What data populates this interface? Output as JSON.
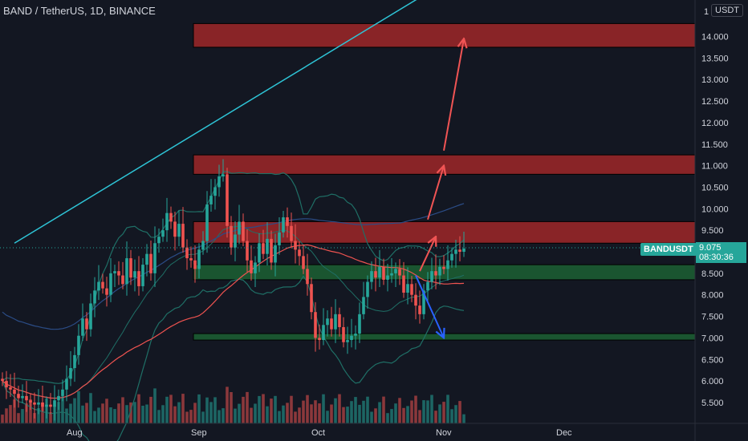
{
  "header": {
    "title": "BAND / TetherUS, 1D, BINANCE",
    "currency": "USDT",
    "partial_tick": "1"
  },
  "price_tag": {
    "symbol": "BANDUSDT",
    "price": "9.075",
    "countdown": "08:30:36"
  },
  "colors": {
    "background": "#131722",
    "up": "#26a69a",
    "down": "#ef5350",
    "trendline": "#2ec4d6",
    "resistance_zone": "#b22a2a",
    "support_zone": "#1e6b35",
    "projection_up": "#f05454",
    "projection_down": "#2962ff",
    "bollinger": "#1f6f66",
    "ma_red": "#ef5350",
    "ma_blue": "#2b4c86"
  },
  "chart_data": {
    "type": "candlestick",
    "symbol": "BAND / TetherUS",
    "interval": "1D",
    "exchange": "BINANCE",
    "y_axis": {
      "ticks": [
        "14.000",
        "13.500",
        "13.000",
        "12.500",
        "12.000",
        "11.500",
        "11.000",
        "10.500",
        "10.000",
        "9.500",
        "9.000",
        "8.500",
        "8.000",
        "7.500",
        "7.000",
        "6.500",
        "6.000",
        "5.500"
      ],
      "range": [
        5.0,
        15.0
      ]
    },
    "x_axis": {
      "ticks": [
        "Aug",
        "Sep",
        "Oct",
        "Nov",
        "Dec"
      ],
      "ticks_day": [
        0,
        31,
        61,
        92,
        122
      ]
    },
    "last_price": 9.075,
    "close_series": [
      6.0,
      5.85,
      5.8,
      5.7,
      5.6,
      5.65,
      5.55,
      5.5,
      5.45,
      5.5,
      5.4,
      5.45,
      5.4,
      5.55,
      5.65,
      5.8,
      6.05,
      6.3,
      6.6,
      7.05,
      7.45,
      7.2,
      7.8,
      8.1,
      8.3,
      8.15,
      8.0,
      8.5,
      8.55,
      8.45,
      8.25,
      8.85,
      8.4,
      8.55,
      8.2,
      8.7,
      8.95,
      8.5,
      9.2,
      9.35,
      9.5,
      9.9,
      9.7,
      9.35,
      9.65,
      9.1,
      8.85,
      8.8,
      8.6,
      9.05,
      9.25,
      10.1,
      10.3,
      10.5,
      10.75,
      10.8,
      9.6,
      9.1,
      9.4,
      9.7,
      9.25,
      8.8,
      8.5,
      8.75,
      9.2,
      8.95,
      9.3,
      8.75,
      9.15,
      9.45,
      9.8,
      9.6,
      9.25,
      9.05,
      8.9,
      8.6,
      8.25,
      7.6,
      7.0,
      6.95,
      7.3,
      7.45,
      7.2,
      7.55,
      7.25,
      6.9,
      6.95,
      7.05,
      7.1,
      7.55,
      7.95,
      8.3,
      8.55,
      8.4,
      8.65,
      8.35,
      8.45,
      8.5,
      8.6,
      8.45,
      8.05,
      8.25,
      8.0,
      7.75,
      7.55,
      8.1,
      8.3,
      8.55,
      8.45,
      8.65,
      8.6,
      8.8,
      8.95,
      9.05,
      9.0,
      9.075
    ],
    "zones": [
      {
        "type": "resistance",
        "from_day": 31,
        "low": 13.75,
        "high": 14.3
      },
      {
        "type": "resistance",
        "from_day": 31,
        "low": 10.8,
        "high": 11.25
      },
      {
        "type": "resistance",
        "from_day": 31,
        "low": 9.2,
        "high": 9.7
      },
      {
        "type": "support",
        "from_day": 31,
        "low": 8.35,
        "high": 8.7
      },
      {
        "type": "support",
        "from_day": 31,
        "low": 6.95,
        "high": 7.1
      }
    ],
    "trendline": [
      {
        "day": -15,
        "price": 9.2
      },
      {
        "day": 93,
        "price": 15.3
      }
    ],
    "projection_up": [
      {
        "from": {
          "day": 86,
          "price": 8.55
        },
        "to": {
          "day": 90,
          "price": 9.35
        }
      },
      {
        "from": {
          "day": 88,
          "price": 9.75
        },
        "to": {
          "day": 92,
          "price": 11.0
        }
      },
      {
        "from": {
          "day": 92,
          "price": 11.35
        },
        "to": {
          "day": 97,
          "price": 13.95
        }
      }
    ],
    "projection_down": [
      {
        "from": {
          "day": 85,
          "price": 8.45
        },
        "to": {
          "day": 92,
          "price": 7.0
        }
      }
    ],
    "grid": false,
    "legend": "none"
  }
}
